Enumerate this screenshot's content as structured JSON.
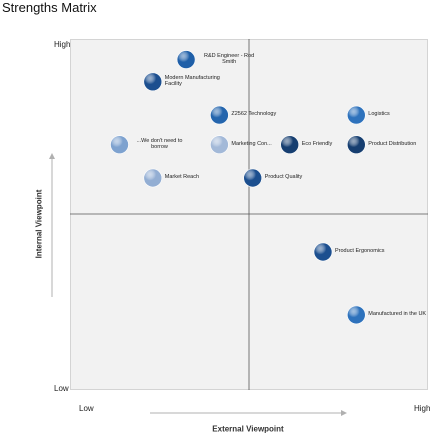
{
  "chart_data": {
    "type": "scatter",
    "title": "Strengths Matrix",
    "xlabel": "External Viewpoint",
    "ylabel": "Internal Viewpoint",
    "x_low_label": "Low",
    "x_high_label": "High",
    "y_low_label": "Low",
    "y_high_label": "High",
    "xlim": [
      0,
      10
    ],
    "ylim": [
      0,
      10
    ],
    "grid": false,
    "points": [
      {
        "label": "R&D Engineer - Rod Smith",
        "x": 3.3,
        "y": 9.2,
        "color": "#1f5fa8"
      },
      {
        "label": "Modern Manufacturing Facility",
        "x": 2.4,
        "y": 8.6,
        "color": "#1c4f8f"
      },
      {
        "label": "Z2562 Technology",
        "x": 4.2,
        "y": 7.7,
        "color": "#2465ad"
      },
      {
        "label": "Logistics",
        "x": 7.9,
        "y": 7.7,
        "color": "#2e72bc"
      },
      {
        "label": "...We don't need to borrow",
        "x": 1.5,
        "y": 6.9,
        "color": "#7ea2cf"
      },
      {
        "label": "Marketing Con...",
        "x": 4.2,
        "y": 6.9,
        "color": "#a3b9d8"
      },
      {
        "label": "Eco Friendly",
        "x": 6.1,
        "y": 6.9,
        "color": "#163e70"
      },
      {
        "label": "Product Distribution",
        "x": 7.9,
        "y": 6.9,
        "color": "#163e70"
      },
      {
        "label": "Market Reach",
        "x": 2.4,
        "y": 6.0,
        "color": "#93aed3"
      },
      {
        "label": "Product Quality",
        "x": 5.1,
        "y": 6.0,
        "color": "#1c4f8f"
      },
      {
        "label": "Product Ergonomics",
        "x": 7.0,
        "y": 4.0,
        "color": "#1c4f8f"
      },
      {
        "label": "Manufactured in the UK",
        "x": 7.9,
        "y": 2.3,
        "color": "#2e72bc"
      }
    ]
  }
}
